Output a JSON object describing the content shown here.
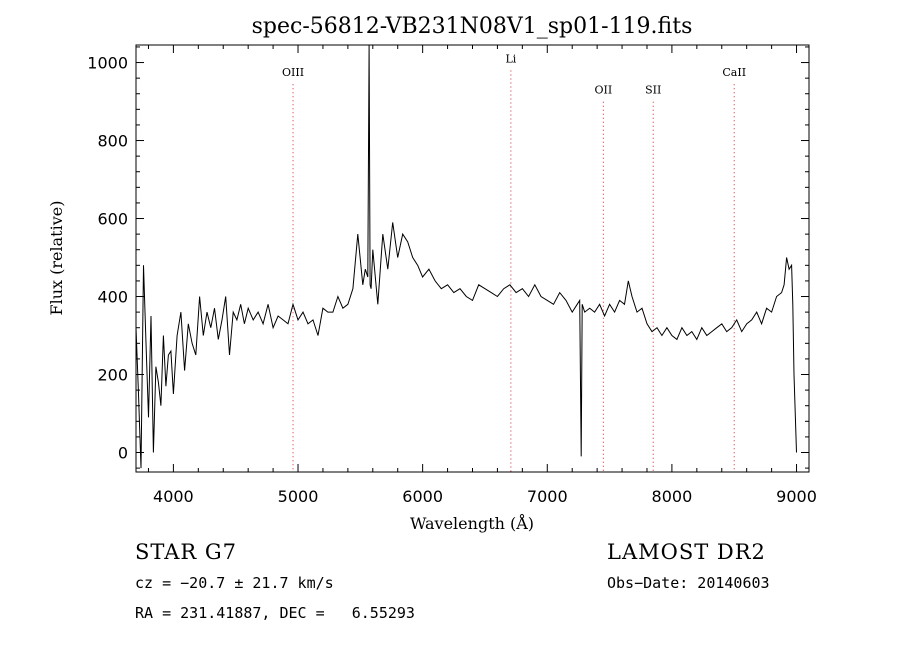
{
  "chart_data": {
    "type": "line",
    "title": "spec-56812-VB231N08V1_sp01-119.fits",
    "xlabel": "Wavelength (Å)",
    "ylabel": "Flux (relative)",
    "xlim": [
      3700,
      9100
    ],
    "ylim": [
      -50,
      1045
    ],
    "xticks": [
      4000,
      5000,
      6000,
      7000,
      8000,
      9000
    ],
    "yticks": [
      0,
      200,
      400,
      600,
      800,
      1000
    ],
    "grid": false,
    "series": [
      {
        "x": [
          3700,
          3720,
          3740,
          3760,
          3780,
          3800,
          3820,
          3840,
          3860,
          3880,
          3900,
          3920,
          3940,
          3960,
          3980,
          4000,
          4030,
          4060,
          4090,
          4120,
          4150,
          4180,
          4210,
          4240,
          4270,
          4300,
          4330,
          4360,
          4390,
          4420,
          4450,
          4480,
          4510,
          4540,
          4570,
          4600,
          4640,
          4680,
          4720,
          4760,
          4800,
          4840,
          4880,
          4920,
          4960,
          5000,
          5040,
          5080,
          5120,
          5160,
          5200,
          5240,
          5280,
          5320,
          5360,
          5400,
          5440,
          5480,
          5520,
          5540,
          5560,
          5570,
          5578,
          5586,
          5600,
          5640,
          5680,
          5720,
          5760,
          5800,
          5840,
          5880,
          5920,
          5960,
          6000,
          6050,
          6100,
          6150,
          6200,
          6250,
          6300,
          6350,
          6400,
          6450,
          6500,
          6550,
          6600,
          6650,
          6700,
          6750,
          6800,
          6850,
          6900,
          6950,
          7000,
          7050,
          7100,
          7150,
          7200,
          7240,
          7260,
          7272,
          7280,
          7300,
          7340,
          7380,
          7420,
          7460,
          7500,
          7540,
          7580,
          7620,
          7650,
          7680,
          7720,
          7760,
          7800,
          7840,
          7880,
          7920,
          7960,
          8000,
          8040,
          8080,
          8120,
          8160,
          8200,
          8240,
          8280,
          8320,
          8360,
          8400,
          8440,
          8480,
          8520,
          8560,
          8600,
          8640,
          8680,
          8720,
          8760,
          8800,
          8840,
          8880,
          8900,
          8920,
          8940,
          8960,
          8970,
          8980,
          9000
        ],
        "values": [
          320,
          150,
          -40,
          480,
          280,
          90,
          350,
          0,
          220,
          180,
          120,
          300,
          170,
          250,
          260,
          150,
          300,
          360,
          210,
          330,
          280,
          250,
          400,
          300,
          360,
          320,
          370,
          290,
          340,
          400,
          250,
          360,
          340,
          380,
          330,
          370,
          340,
          360,
          330,
          380,
          320,
          350,
          340,
          330,
          380,
          340,
          360,
          330,
          340,
          300,
          370,
          360,
          360,
          400,
          370,
          380,
          420,
          560,
          430,
          470,
          450,
          1045,
          430,
          420,
          520,
          380,
          560,
          470,
          590,
          500,
          560,
          540,
          500,
          480,
          450,
          470,
          440,
          420,
          430,
          410,
          420,
          400,
          390,
          430,
          420,
          410,
          400,
          420,
          430,
          410,
          420,
          400,
          430,
          400,
          390,
          380,
          410,
          390,
          360,
          380,
          390,
          -10,
          380,
          360,
          370,
          360,
          380,
          350,
          380,
          360,
          390,
          380,
          440,
          400,
          360,
          370,
          330,
          310,
          320,
          300,
          320,
          300,
          290,
          320,
          300,
          310,
          290,
          320,
          300,
          310,
          320,
          330,
          310,
          320,
          340,
          310,
          330,
          340,
          360,
          330,
          370,
          360,
          400,
          410,
          430,
          500,
          470,
          480,
          380,
          200,
          0
        ]
      }
    ],
    "annotations": [
      {
        "label": "OIII",
        "x": 4960,
        "y": 965
      },
      {
        "label": "Li",
        "x": 6708,
        "y": 1000
      },
      {
        "label": "OII",
        "x": 7450,
        "y": 920
      },
      {
        "label": "SII",
        "x": 7850,
        "y": 920
      },
      {
        "label": "CaII",
        "x": 8500,
        "y": 965
      }
    ]
  },
  "footer": {
    "object_class": "STAR   G7",
    "survey": "LAMOST DR2",
    "redshift": "cz = −20.7 ± 21.7 km/s",
    "obs_date": "Obs−Date: 20140603",
    "coordinates": "RA = 231.41887, DEC =   6.55293"
  },
  "colors": {
    "line": "#000000",
    "annotation_line": "#d62728",
    "axis": "#000000"
  }
}
